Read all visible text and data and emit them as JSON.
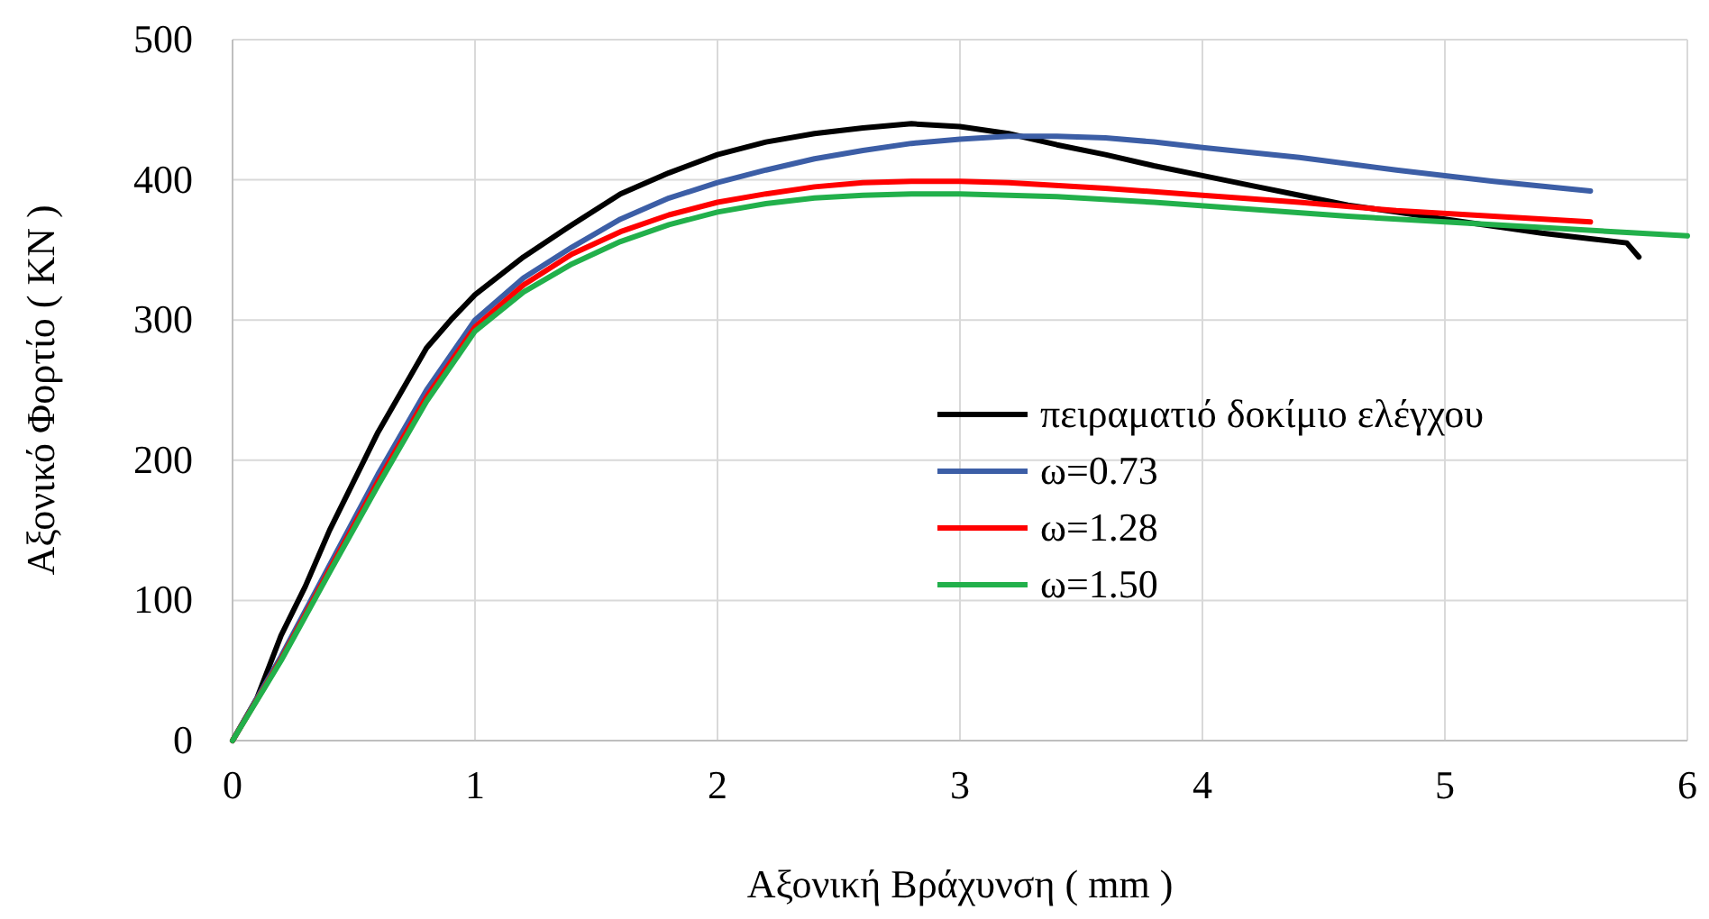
{
  "chart_data": {
    "type": "line",
    "xlabel": "Αξονική Βράχυνση ( mm )",
    "ylabel": "Αξονικό Φορτίο ( KN )",
    "xlim": [
      0,
      6
    ],
    "ylim": [
      0,
      500
    ],
    "xticks": [
      0,
      1,
      2,
      3,
      4,
      5,
      6
    ],
    "yticks": [
      0,
      100,
      200,
      300,
      400,
      500
    ],
    "grid": true,
    "legend": "right",
    "marker": "none",
    "line_style": "solid",
    "series": [
      {
        "name": "πειραματιό δοκίμιο ελέγχου",
        "color": "#000000",
        "x": [
          0,
          0.1,
          0.2,
          0.3,
          0.4,
          0.5,
          0.6,
          0.7,
          0.8,
          0.9,
          1,
          1.2,
          1.4,
          1.6,
          1.8,
          2,
          2.2,
          2.4,
          2.6,
          2.8,
          3,
          3.2,
          3.4,
          3.6,
          3.8,
          4,
          4.2,
          4.4,
          4.6,
          4.8,
          5,
          5.2,
          5.4,
          5.6,
          5.75,
          5.8
        ],
        "values": [
          0,
          30,
          75,
          110,
          150,
          185,
          220,
          250,
          280,
          300,
          318,
          345,
          368,
          390,
          405,
          418,
          427,
          433,
          437,
          440,
          438,
          433,
          425,
          418,
          410,
          403,
          396,
          389,
          382,
          377,
          372,
          367,
          362,
          358,
          355,
          345
        ]
      },
      {
        "name": "ω=0.73",
        "color": "#3c5ea6",
        "x": [
          0,
          0.2,
          0.4,
          0.6,
          0.8,
          1,
          1.2,
          1.4,
          1.6,
          1.8,
          2,
          2.2,
          2.4,
          2.6,
          2.8,
          3,
          3.2,
          3.4,
          3.6,
          3.8,
          4,
          4.4,
          4.8,
          5.2,
          5.6
        ],
        "values": [
          0,
          60,
          125,
          190,
          250,
          300,
          330,
          352,
          372,
          387,
          398,
          407,
          415,
          421,
          426,
          429,
          431,
          431,
          430,
          427,
          423,
          416,
          407,
          399,
          392
        ]
      },
      {
        "name": "ω=1.28",
        "color": "#ff0000",
        "x": [
          0,
          0.2,
          0.4,
          0.6,
          0.8,
          1,
          1.2,
          1.4,
          1.6,
          1.8,
          2,
          2.2,
          2.4,
          2.6,
          2.8,
          3,
          3.2,
          3.6,
          4,
          4.4,
          4.8,
          5.2,
          5.6
        ],
        "values": [
          0,
          58,
          122,
          185,
          245,
          295,
          325,
          347,
          363,
          375,
          384,
          390,
          395,
          398,
          399,
          399,
          398,
          394,
          389,
          384,
          378,
          374,
          370
        ]
      },
      {
        "name": "ω=1.50",
        "color": "#22b04b",
        "x": [
          0,
          0.2,
          0.4,
          0.6,
          0.8,
          1,
          1.2,
          1.4,
          1.6,
          1.8,
          2,
          2.2,
          2.4,
          2.6,
          2.8,
          3,
          3.4,
          3.8,
          4.2,
          4.6,
          5,
          5.4,
          5.8,
          6
        ],
        "values": [
          0,
          57,
          120,
          182,
          242,
          292,
          320,
          340,
          356,
          368,
          377,
          383,
          387,
          389,
          390,
          390,
          388,
          384,
          379,
          374,
          370,
          366,
          362,
          360
        ]
      }
    ]
  }
}
